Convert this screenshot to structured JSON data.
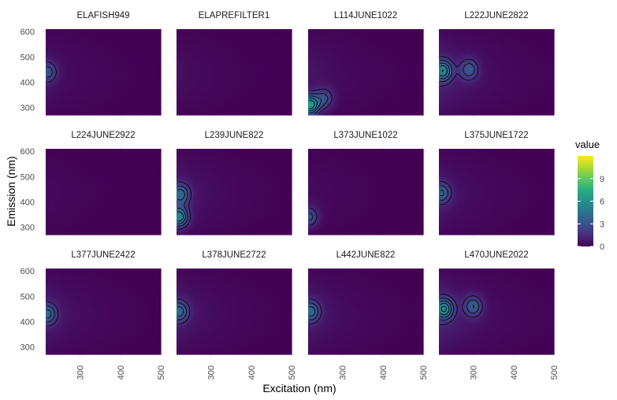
{
  "chart_data": {
    "type": "heatmap",
    "layout": "facet-grid",
    "rows": 3,
    "cols": 4,
    "xlabel": "Excitation (nm)",
    "ylabel": "Emission (nm)",
    "xlim": [
      215,
      500
    ],
    "ylim": [
      270,
      610
    ],
    "x_ticks": [
      300,
      400,
      500
    ],
    "y_ticks": [
      300,
      400,
      500,
      600
    ],
    "colorscale": "viridis",
    "legend": {
      "title": "value",
      "range": [
        0,
        12
      ],
      "ticks": [
        0,
        3,
        6,
        9
      ],
      "position": "right"
    },
    "grid": true,
    "panels": [
      {
        "name": "ELAFISH949",
        "base_intensity": 0.6,
        "peaks": [
          {
            "ex": 220,
            "em": 440,
            "value": 2.6
          }
        ]
      },
      {
        "name": "ELAPREFILTER1",
        "base_intensity": 0.5,
        "peaks": []
      },
      {
        "name": "L114JUNE1022",
        "base_intensity": 0.7,
        "peaks": [
          {
            "ex": 220,
            "em": 310,
            "value": 6.0
          },
          {
            "ex": 255,
            "em": 335,
            "value": 2.5
          }
        ]
      },
      {
        "name": "L222JUNE2822",
        "base_intensity": 1.2,
        "peaks": [
          {
            "ex": 225,
            "em": 445,
            "value": 4.5
          },
          {
            "ex": 290,
            "em": 450,
            "value": 2.8
          }
        ]
      },
      {
        "name": "L224JUNE2922",
        "base_intensity": 0.3,
        "peaks": []
      },
      {
        "name": "L239JUNE822",
        "base_intensity": 0.9,
        "peaks": [
          {
            "ex": 222,
            "em": 340,
            "value": 4.8
          },
          {
            "ex": 225,
            "em": 430,
            "value": 3.4
          }
        ]
      },
      {
        "name": "L373JUNE1022",
        "base_intensity": 0.4,
        "peaks": [
          {
            "ex": 218,
            "em": 340,
            "value": 2.6
          }
        ]
      },
      {
        "name": "L375JUNE1722",
        "base_intensity": 0.8,
        "peaks": [
          {
            "ex": 222,
            "em": 435,
            "value": 3.0
          }
        ]
      },
      {
        "name": "L377JUNE2422",
        "base_intensity": 0.9,
        "peaks": [
          {
            "ex": 220,
            "em": 430,
            "value": 3.2
          }
        ]
      },
      {
        "name": "L378JUNE2722",
        "base_intensity": 0.9,
        "peaks": [
          {
            "ex": 222,
            "em": 440,
            "value": 3.4
          }
        ]
      },
      {
        "name": "L442JUNE822",
        "base_intensity": 0.9,
        "peaks": [
          {
            "ex": 222,
            "em": 440,
            "value": 3.4
          }
        ]
      },
      {
        "name": "L470JUNE2022",
        "base_intensity": 1.3,
        "peaks": [
          {
            "ex": 228,
            "em": 450,
            "value": 4.8
          },
          {
            "ex": 300,
            "em": 460,
            "value": 3.0
          }
        ]
      }
    ]
  }
}
